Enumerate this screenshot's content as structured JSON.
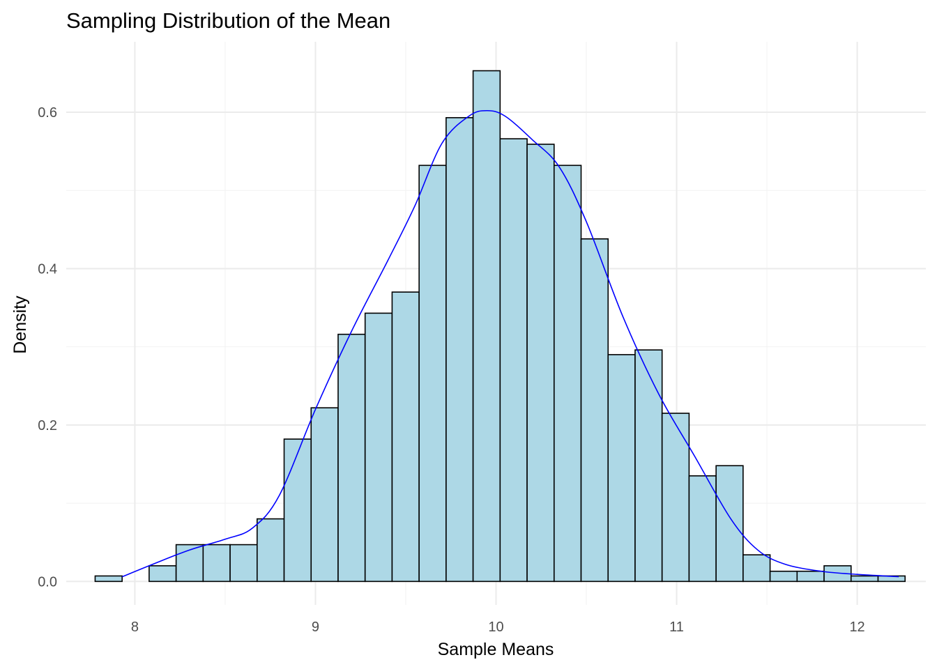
{
  "chart_data": {
    "type": "bar",
    "subtype": "histogram-with-density",
    "title": "Sampling Distribution of the Mean",
    "xlabel": "Sample Means",
    "ylabel": "Density",
    "xlim": [
      7.62,
      12.38
    ],
    "ylim": [
      -0.03,
      0.69
    ],
    "x_ticks": [
      8,
      9,
      10,
      11,
      12
    ],
    "x_tick_labels": [
      "8",
      "9",
      "10",
      "11",
      "12"
    ],
    "y_ticks": [
      0.0,
      0.2,
      0.4,
      0.6
    ],
    "y_tick_labels": [
      "0.0",
      "0.2",
      "0.4",
      "0.6"
    ],
    "bin_start": 7.78,
    "bin_width": 0.1495,
    "values": [
      0.007,
      0.0,
      0.02,
      0.047,
      0.047,
      0.047,
      0.08,
      0.182,
      0.222,
      0.316,
      0.343,
      0.37,
      0.532,
      0.593,
      0.653,
      0.566,
      0.559,
      0.532,
      0.438,
      0.29,
      0.296,
      0.215,
      0.135,
      0.148,
      0.034,
      0.013,
      0.013,
      0.02,
      0.007,
      0.007
    ],
    "bar_fill": "#add8e6",
    "bar_stroke": "#000000",
    "density_color": "#0000ff",
    "density_curve": {
      "x": [
        7.93,
        8.1,
        8.3,
        8.5,
        8.65,
        8.8,
        9.0,
        9.2,
        9.4,
        9.55,
        9.7,
        9.85,
        9.95,
        10.05,
        10.2,
        10.35,
        10.5,
        10.7,
        10.9,
        11.1,
        11.3,
        11.45,
        11.6,
        11.8,
        12.0,
        12.23
      ],
      "y": [
        0.006,
        0.022,
        0.04,
        0.054,
        0.068,
        0.11,
        0.22,
        0.32,
        0.41,
        0.48,
        0.56,
        0.595,
        0.602,
        0.595,
        0.565,
        0.53,
        0.46,
        0.34,
        0.24,
        0.16,
        0.08,
        0.04,
        0.022,
        0.013,
        0.009,
        0.006
      ]
    }
  }
}
